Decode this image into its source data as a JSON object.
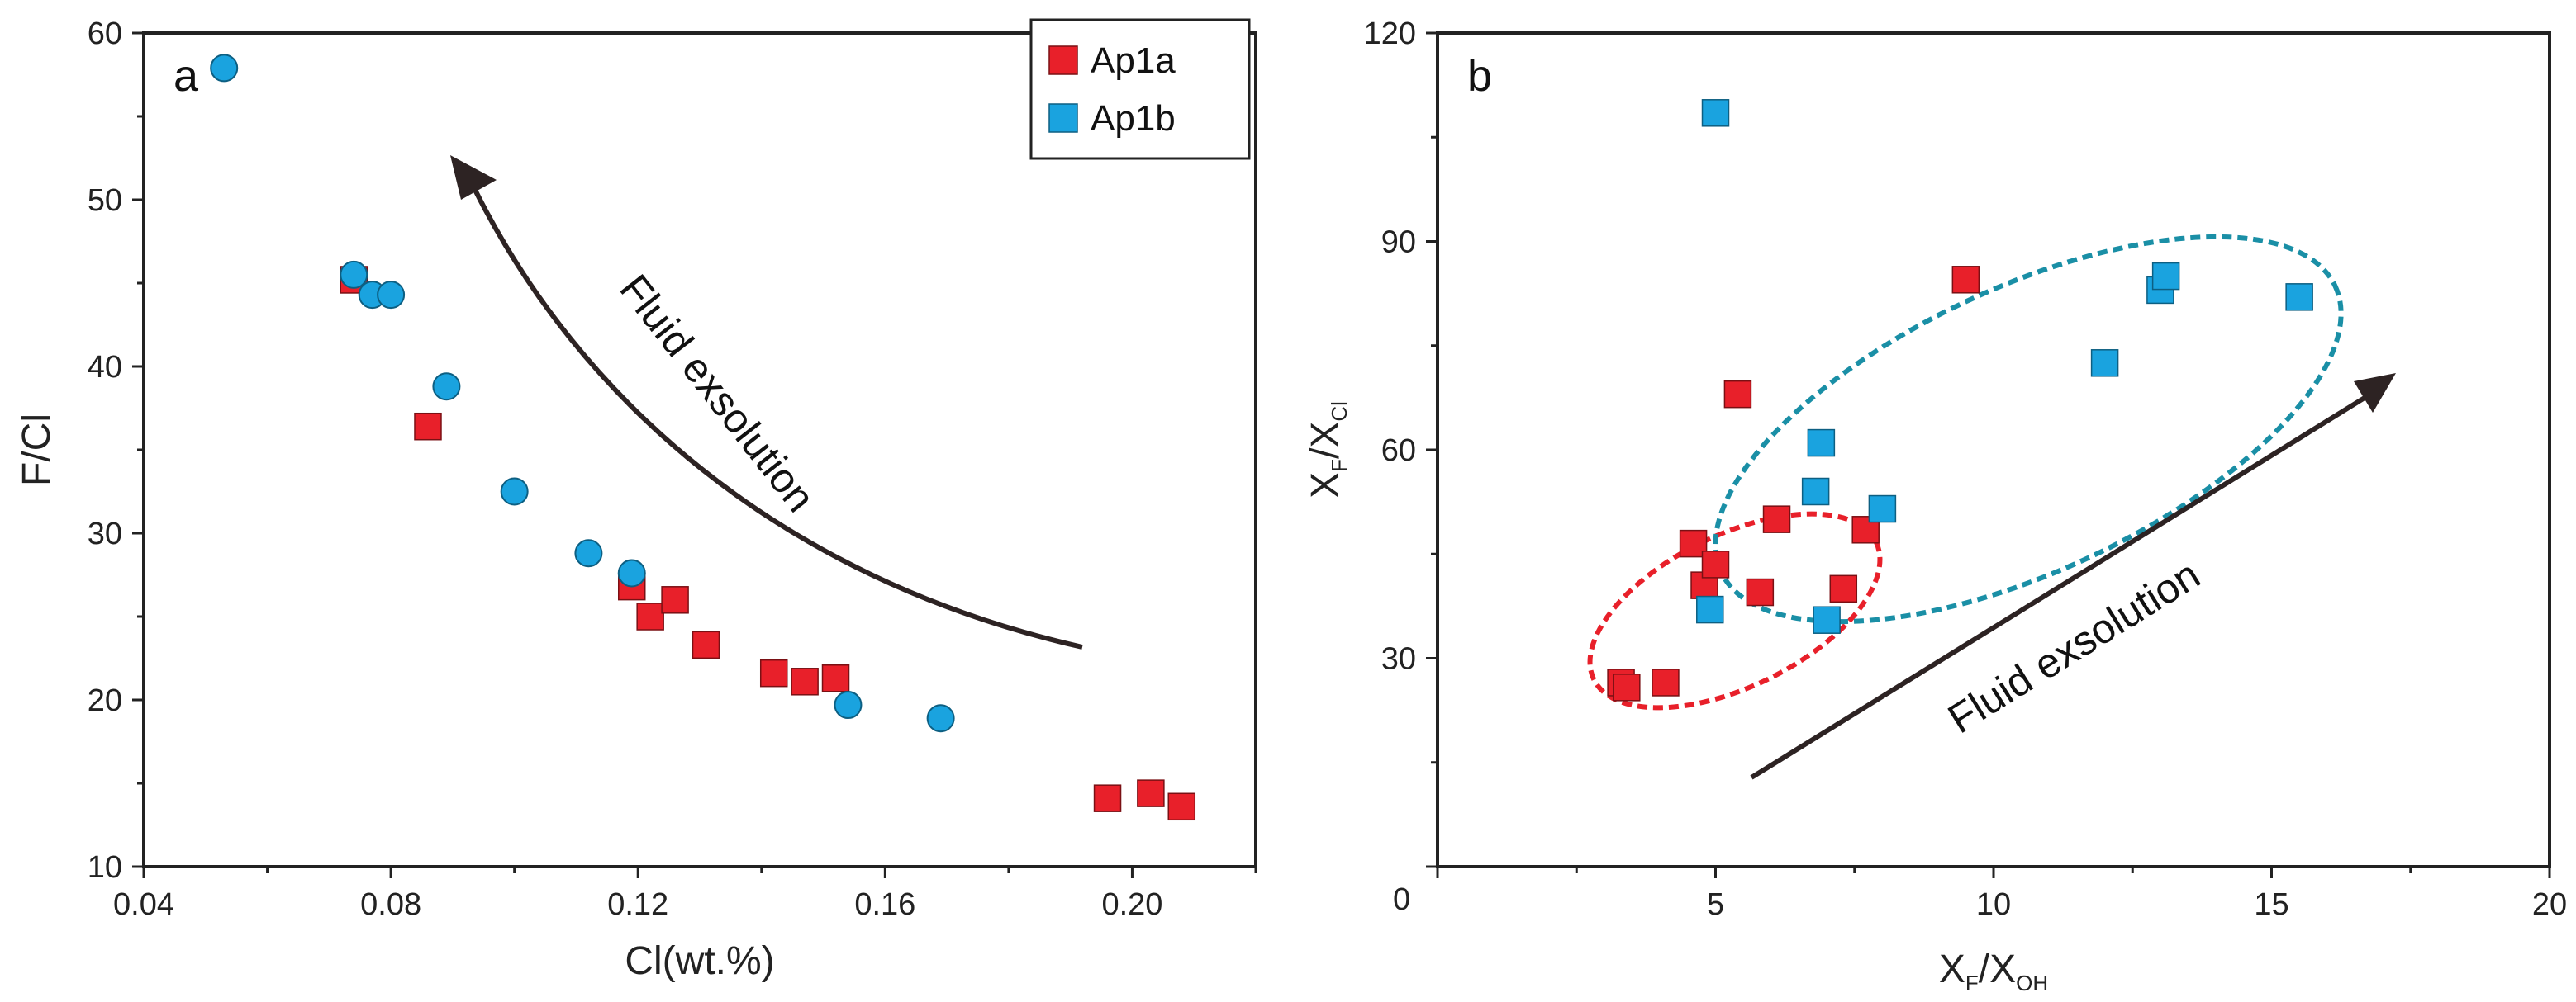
{
  "colors": {
    "ap1a": "#e8202a",
    "ap1b": "#1aa3df",
    "red_ellipse": "#e8202a",
    "teal_ellipse": "#1a8fa6",
    "arrow": "#2d2323"
  },
  "chart_data": [
    {
      "type": "scatter",
      "panel_label": "a",
      "xlabel": "Cl(wt.%)",
      "ylabel": "F/Cl",
      "xlim": [
        0.04,
        0.22
      ],
      "ylim": [
        10,
        60
      ],
      "xticks": [
        "0.04",
        "0.08",
        "0.12",
        "0.16",
        "0.20"
      ],
      "yticks": [
        "10",
        "20",
        "30",
        "40",
        "50",
        "60"
      ],
      "annotation": "Fluid exsolution",
      "legend": [
        {
          "name": "Ap1a",
          "marker": "square",
          "color": "#e8202a"
        },
        {
          "name": "Ap1b",
          "marker": "square",
          "color": "#1aa3df"
        }
      ],
      "series": [
        {
          "name": "Ap1a",
          "marker": "square",
          "points": [
            [
              0.074,
              45.2
            ],
            [
              0.086,
              36.4
            ],
            [
              0.119,
              26.8
            ],
            [
              0.122,
              25.0
            ],
            [
              0.126,
              26.0
            ],
            [
              0.131,
              23.3
            ],
            [
              0.142,
              21.6
            ],
            [
              0.147,
              21.1
            ],
            [
              0.152,
              21.3
            ],
            [
              0.196,
              14.1
            ],
            [
              0.203,
              14.4
            ],
            [
              0.208,
              13.6
            ]
          ]
        },
        {
          "name": "Ap1b",
          "marker": "circle",
          "points": [
            [
              0.053,
              57.9
            ],
            [
              0.074,
              45.5
            ],
            [
              0.077,
              44.3
            ],
            [
              0.08,
              44.3
            ],
            [
              0.089,
              38.8
            ],
            [
              0.1,
              32.5
            ],
            [
              0.112,
              28.8
            ],
            [
              0.119,
              27.6
            ],
            [
              0.154,
              19.7
            ],
            [
              0.169,
              18.9
            ]
          ]
        }
      ]
    },
    {
      "type": "scatter",
      "panel_label": "b",
      "xlabel_main": "X",
      "xlabel_sub1": "F",
      "xlabel_sub2": "OH",
      "ylabel_main": "X",
      "ylabel_sub1": "F",
      "ylabel_sub2": "Cl",
      "xlim": [
        0,
        20
      ],
      "ylim": [
        0,
        120
      ],
      "origin_label": "0",
      "xticks": [
        "5",
        "10",
        "15",
        "20"
      ],
      "yticks": [
        "30",
        "60",
        "90",
        "120"
      ],
      "annotation": "Fluid exsolution",
      "series": [
        {
          "name": "Ap1a",
          "marker": "square",
          "points": [
            [
              3.3,
              26.5
            ],
            [
              3.4,
              25.8
            ],
            [
              4.1,
              26.5
            ],
            [
              4.6,
              46.5
            ],
            [
              4.8,
              40.5
            ],
            [
              5.0,
              43.5
            ],
            [
              5.4,
              68.0
            ],
            [
              5.8,
              39.5
            ],
            [
              6.1,
              50.0
            ],
            [
              7.3,
              40.0
            ],
            [
              7.7,
              48.5
            ],
            [
              9.5,
              84.5
            ]
          ]
        },
        {
          "name": "Ap1b",
          "marker": "square",
          "points": [
            [
              4.9,
              37.0
            ],
            [
              5.0,
              108.5
            ],
            [
              6.8,
              54.0
            ],
            [
              6.9,
              61.0
            ],
            [
              7.0,
              35.5
            ],
            [
              8.0,
              51.5
            ],
            [
              12.0,
              72.5
            ],
            [
              13.0,
              83.0
            ],
            [
              13.1,
              85.0
            ],
            [
              15.5,
              82.0
            ]
          ]
        }
      ]
    }
  ]
}
